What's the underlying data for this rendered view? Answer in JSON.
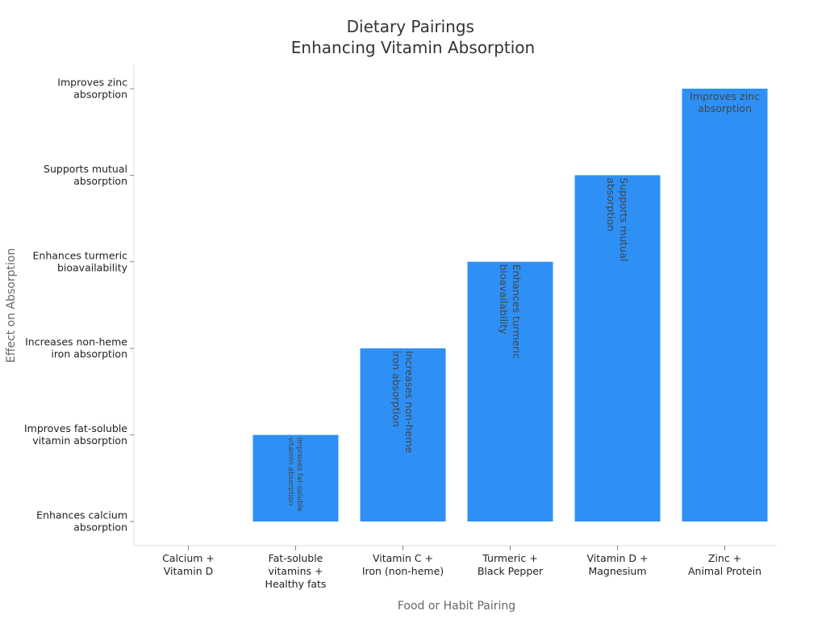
{
  "chart_data": {
    "type": "bar",
    "title": [
      "Dietary Pairings",
      "Enhancing Vitamin Absorption"
    ],
    "xlabel": "Food or Habit Pairing",
    "ylabel": "Effect on Absorption",
    "categories": [
      [
        "Calcium +",
        "Vitamin D"
      ],
      [
        "Fat-soluble",
        "vitamins +",
        "Healthy fats"
      ],
      [
        "Vitamin C +",
        "Iron (non-heme)"
      ],
      [
        "Turmeric +",
        "Black Pepper"
      ],
      [
        "Vitamin D +",
        "Magnesium"
      ],
      [
        "Zinc +",
        "Animal Protein"
      ]
    ],
    "y_categories": [
      [
        "Enhances calcium",
        "absorption"
      ],
      [
        "Improves fat-soluble",
        "vitamin absorption"
      ],
      [
        "Increases non-heme",
        "iron absorption"
      ],
      [
        "Enhances turmeric",
        "bioavailability"
      ],
      [
        "Supports mutual",
        "absorption"
      ],
      [
        "Improves zinc",
        "absorption"
      ]
    ],
    "values": [
      0,
      1,
      2,
      3,
      4,
      5
    ],
    "bar_labels": [
      [],
      [
        "Improves fat-soluble",
        "vitamin absorption"
      ],
      [
        "Increases non-heme",
        "iron absorption"
      ],
      [
        "Enhances turmeric",
        "bioavailability"
      ],
      [
        "Supports mutual",
        "absorption"
      ],
      [
        "Improves zinc",
        "absorption"
      ]
    ],
    "bar_label_orientation": [
      "none",
      "vertical",
      "vertical",
      "vertical",
      "vertical",
      "horizontal"
    ],
    "bar_color": "#2e90f5",
    "grid": false,
    "legend": "none"
  }
}
